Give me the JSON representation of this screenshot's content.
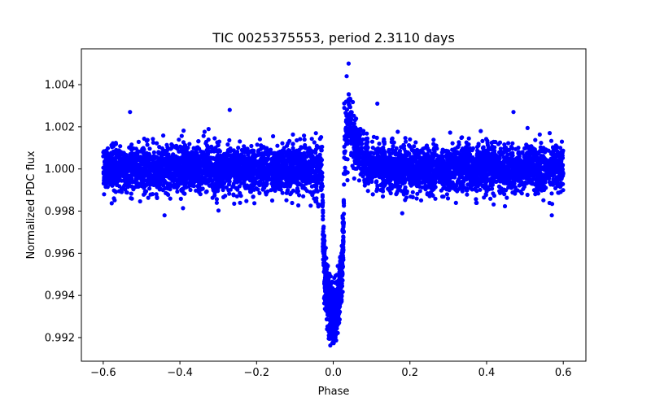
{
  "chart_data": {
    "type": "scatter",
    "title": "TIC 0025375553, period 2.3110 days",
    "xlabel": "Phase",
    "ylabel": "Normalized PDC flux",
    "xlim": [
      -0.657,
      0.659
    ],
    "ylim": [
      0.99088,
      1.0057
    ],
    "xticks": [
      -0.6,
      -0.4,
      -0.2,
      0.0,
      0.2,
      0.4,
      0.6
    ],
    "xtick_labels": [
      "−0.6",
      "−0.4",
      "−0.2",
      "0.0",
      "0.2",
      "0.4",
      "0.6"
    ],
    "yticks": [
      0.992,
      0.994,
      0.996,
      0.998,
      1.0,
      1.002,
      1.004
    ],
    "ytick_labels": [
      "0.992",
      "0.994",
      "0.996",
      "0.998",
      "1.000",
      "1.002",
      "1.004"
    ],
    "grid": false,
    "marker_color": "#0000ff",
    "series_model": {
      "phase_range": [
        -0.6,
        0.6
      ],
      "n_points": 6000,
      "baseline": 1.0,
      "noise_sigma": 0.00055,
      "transit_center": 0.0,
      "transit_half_width": 0.028,
      "transit_depth": 0.0068,
      "post_transit_bump_peak_phase": 0.04,
      "post_transit_bump_amplitude": 0.0025,
      "post_transit_bump_decay": 0.025
    },
    "notable_points": [
      {
        "x": 0.04,
        "y": 1.005
      },
      {
        "x": 0.035,
        "y": 1.0044
      },
      {
        "x": -0.27,
        "y": 1.0028
      },
      {
        "x": -0.53,
        "y": 1.0027
      },
      {
        "x": 0.47,
        "y": 1.0027
      },
      {
        "x": 0.115,
        "y": 1.0031
      },
      {
        "x": -0.0,
        "y": 0.9918
      },
      {
        "x": -0.44,
        "y": 0.9978
      },
      {
        "x": 0.57,
        "y": 0.9978
      },
      {
        "x": 0.18,
        "y": 0.9979
      }
    ]
  }
}
